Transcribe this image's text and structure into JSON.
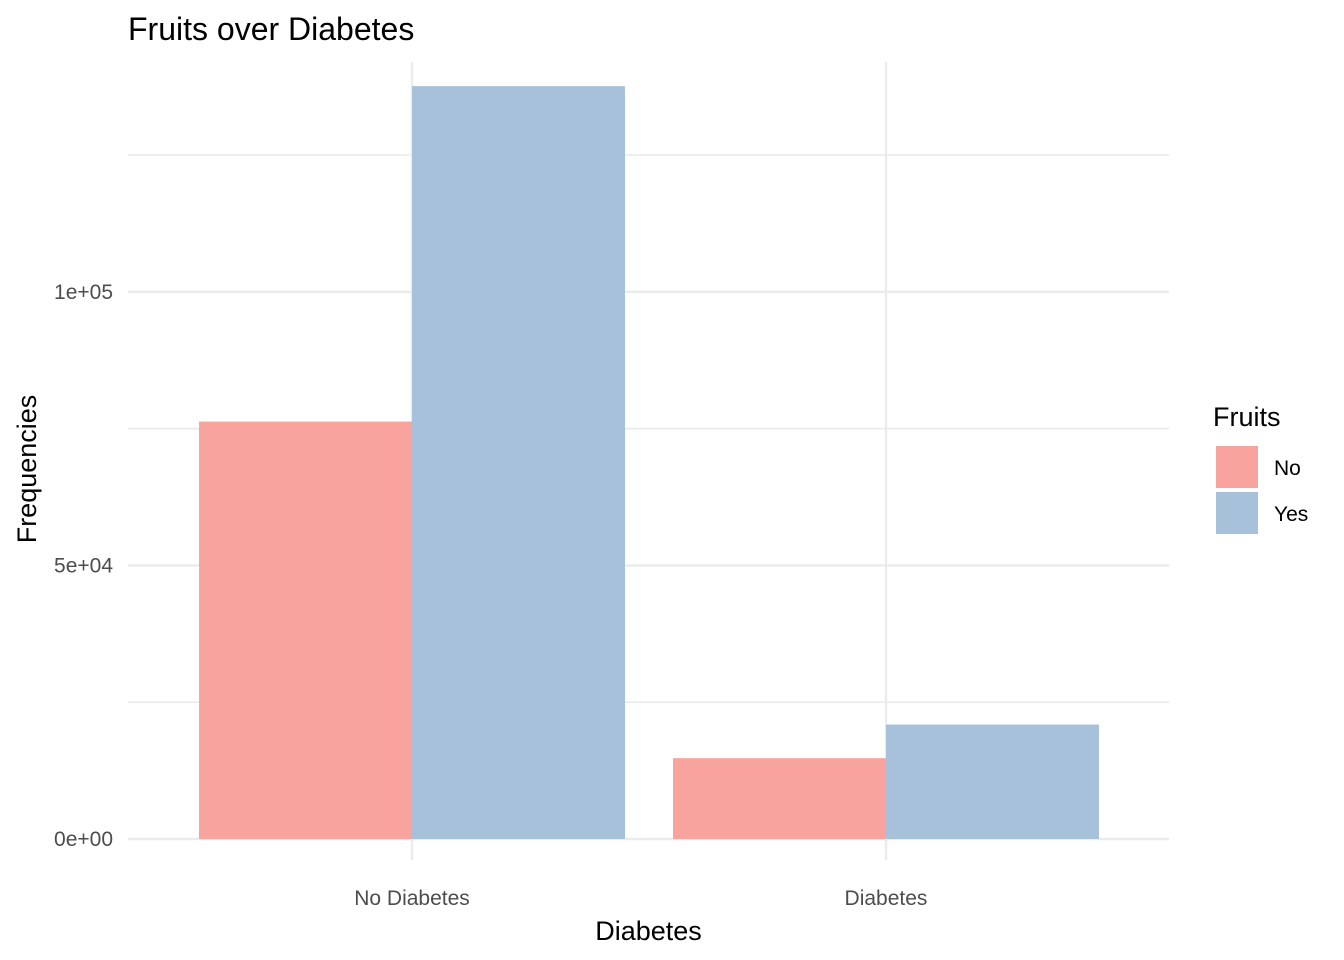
{
  "chart_data": {
    "type": "bar",
    "title": "Fruits over Diabetes",
    "xlabel": "Diabetes",
    "ylabel": "Frequencies",
    "categories": [
      "No Diabetes",
      "Diabetes"
    ],
    "series": [
      {
        "name": "No",
        "values": [
          76287,
          14773
        ],
        "color": "#f8a39e"
      },
      {
        "name": "Yes",
        "values": [
          137593,
          20907
        ],
        "color": "#a7c1db"
      }
    ],
    "ylim": [
      0,
      142000
    ],
    "yticks": [
      {
        "value": 0,
        "label": "0e+00"
      },
      {
        "value": 50000,
        "label": "5e+04"
      },
      {
        "value": 100000,
        "label": "1e+05"
      }
    ],
    "minor_yticks": [
      25000,
      75000,
      125000
    ],
    "grid": true,
    "legend": {
      "title": "Fruits",
      "position": "right"
    }
  }
}
